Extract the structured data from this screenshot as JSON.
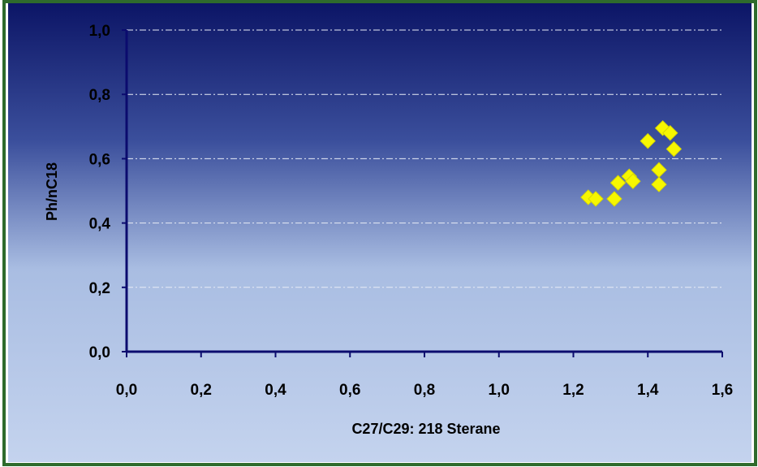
{
  "chart_data": {
    "type": "scatter",
    "title": "",
    "xlabel": "C27/C29: 218 Sterane",
    "ylabel": "Ph/nC18",
    "xlim": [
      0,
      1.6
    ],
    "ylim": [
      0,
      1.0
    ],
    "xticks": [
      "0,0",
      "0,2",
      "0,4",
      "0,6",
      "0,8",
      "1,0",
      "1,2",
      "1,4",
      "1,6"
    ],
    "yticks": [
      "0,0",
      "0,2",
      "0,4",
      "0,6",
      "0,8",
      "1,0"
    ],
    "grid": "horizontal dash-dot",
    "legend": "none",
    "marker": "diamond",
    "colors": {
      "marker": "#f7f700",
      "axis": "#0b0b6e",
      "plot_top": "#0c1566",
      "plot_bottom": "#c4d3ee",
      "frame": "#2e6b2c"
    },
    "series": [
      {
        "points": [
          {
            "x": 1.24,
            "y": 0.48
          },
          {
            "x": 1.26,
            "y": 0.475
          },
          {
            "x": 1.31,
            "y": 0.475
          },
          {
            "x": 1.32,
            "y": 0.525
          },
          {
            "x": 1.35,
            "y": 0.545
          },
          {
            "x": 1.36,
            "y": 0.53
          },
          {
            "x": 1.4,
            "y": 0.655
          },
          {
            "x": 1.43,
            "y": 0.565
          },
          {
            "x": 1.43,
            "y": 0.52
          },
          {
            "x": 1.44,
            "y": 0.695
          },
          {
            "x": 1.46,
            "y": 0.68
          },
          {
            "x": 1.47,
            "y": 0.63
          }
        ]
      }
    ]
  }
}
